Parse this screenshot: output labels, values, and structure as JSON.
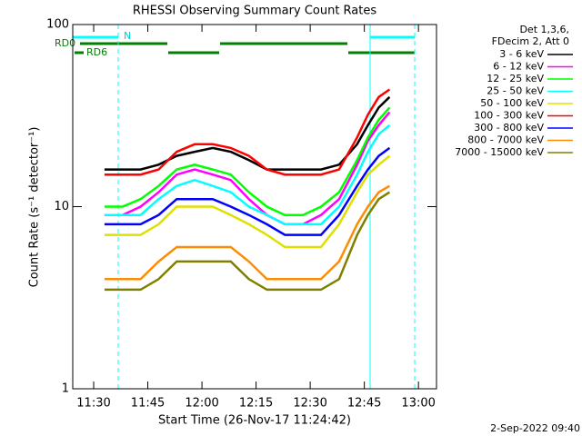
{
  "chart_data": {
    "type": "line",
    "title": "RHESSI Observing Summary Count Rates",
    "x_label": "Start Time (26-Nov-17 11:24:42)",
    "y_label": "Count Rate (s⁻¹ detector⁻¹)",
    "log_y": true,
    "xlim": [
      684.2,
      785
    ],
    "ylim": [
      1,
      100
    ],
    "xticks": [
      {
        "value": 690,
        "label": "11:30"
      },
      {
        "value": 705,
        "label": "11:45"
      },
      {
        "value": 720,
        "label": "12:00"
      },
      {
        "value": 735,
        "label": "12:15"
      },
      {
        "value": 750,
        "label": "12:30"
      },
      {
        "value": 765,
        "label": "12:45"
      },
      {
        "value": 780,
        "label": "13:00"
      }
    ],
    "yticks": [
      1,
      10,
      100
    ],
    "x": [
      693,
      698,
      703,
      708,
      713,
      718,
      723,
      728,
      733,
      738,
      743,
      748,
      753,
      758,
      763,
      766,
      769,
      772
    ],
    "legend_header": [
      "Det 1,3,6,",
      "FDecim 2, Att 0"
    ],
    "series": [
      {
        "name": "3 - 6 keV",
        "color": "#000000",
        "values": [
          16,
          16,
          16,
          17,
          19,
          20,
          21,
          20,
          18,
          16,
          16,
          16,
          16,
          17,
          22,
          28,
          35,
          40
        ]
      },
      {
        "name": "6 - 12 keV",
        "color": "#ff00ff",
        "values": [
          9,
          9,
          10,
          12,
          15,
          16,
          15,
          14,
          11,
          9,
          8,
          8,
          9,
          11,
          17,
          23,
          28,
          33
        ]
      },
      {
        "name": "12 - 25 keV",
        "color": "#00ff00",
        "values": [
          10,
          10,
          11,
          13,
          16,
          17,
          16,
          15,
          12,
          10,
          9,
          9,
          10,
          12,
          18,
          24,
          30,
          35
        ]
      },
      {
        "name": "25 - 50 keV",
        "color": "#00ffff",
        "values": [
          9,
          9,
          9,
          11,
          13,
          14,
          13,
          12,
          10,
          9,
          8,
          8,
          8,
          10,
          15,
          20,
          25,
          28
        ]
      },
      {
        "name": "50 - 100 keV",
        "color": "#e0e000",
        "values": [
          7,
          7,
          7,
          8,
          10,
          10,
          10,
          9,
          8,
          7,
          6,
          6,
          6,
          8,
          12,
          15,
          17,
          19
        ]
      },
      {
        "name": "100 - 300 keV",
        "color": "#ff0000",
        "values": [
          15,
          15,
          15,
          16,
          20,
          22,
          22,
          21,
          19,
          16,
          15,
          15,
          15,
          16,
          24,
          32,
          40,
          44
        ]
      },
      {
        "name": "300 - 800 keV",
        "color": "#0000ff",
        "values": [
          8,
          8,
          8,
          9,
          11,
          11,
          11,
          10,
          9,
          8,
          7,
          7,
          7,
          9,
          13,
          16,
          19,
          21
        ]
      },
      {
        "name": "800 - 7000 keV",
        "color": "#ff8c00",
        "values": [
          4,
          4,
          4,
          5,
          6,
          6,
          6,
          6,
          5,
          4,
          4,
          4,
          4,
          5,
          8,
          10,
          12,
          13
        ]
      },
      {
        "name": "7000 - 15000 keV",
        "color": "#808000",
        "values": [
          3.5,
          3.5,
          3.5,
          4,
          5,
          5,
          5,
          5,
          4,
          3.5,
          3.5,
          3.5,
          3.5,
          4,
          7,
          9,
          11,
          12
        ]
      }
    ],
    "flags": [
      "N",
      "RD0",
      "RD6"
    ],
    "footer": "2-Sep-2022 09:40"
  }
}
